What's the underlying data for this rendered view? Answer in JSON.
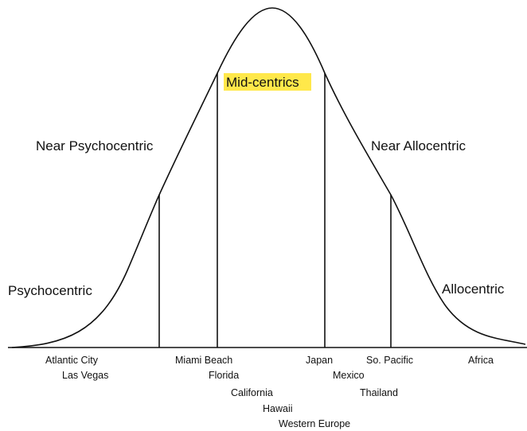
{
  "segments": [
    "Psychocentric",
    "Near Psychocentric",
    "Mid-centrics",
    "Near Allocentric",
    "Allocentric"
  ],
  "destinations": [
    "Atlantic City",
    "Las Vegas",
    "Miami Beach",
    "Florida",
    "California",
    "Hawaii",
    "Western Europe",
    "Japan",
    "Mexico",
    "Thailand",
    "So. Pacific",
    "Africa"
  ]
}
